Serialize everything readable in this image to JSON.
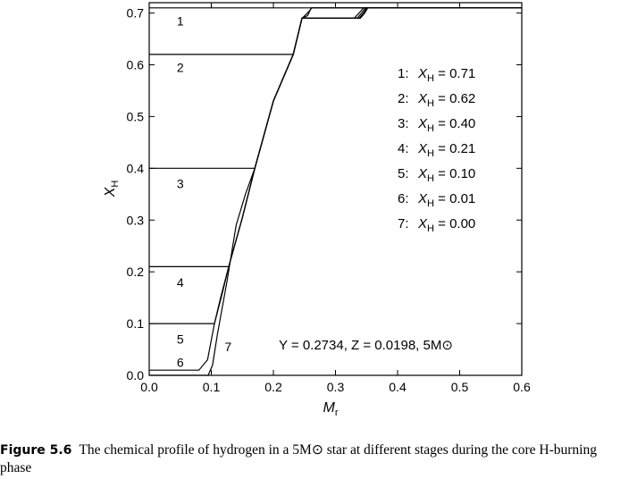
{
  "chart_data": {
    "type": "line",
    "xlabel": "M_r",
    "ylabel": "X_H",
    "xlim": [
      0.0,
      0.6
    ],
    "ylim": [
      0.0,
      0.72
    ],
    "xticks": [
      "0.0",
      "0.1",
      "0.2",
      "0.3",
      "0.4",
      "0.5",
      "0.6"
    ],
    "yticks": [
      "0.0",
      "0.1",
      "0.2",
      "0.3",
      "0.4",
      "0.5",
      "0.6",
      "0.7"
    ],
    "annotation": "Y = 0.2734, Z = 0.0198, 5M⊙",
    "legend": [
      {
        "label": "1:",
        "text": "X_H = 0.71"
      },
      {
        "label": "2:",
        "text": "X_H = 0.62"
      },
      {
        "label": "3:",
        "text": "X_H = 0.40"
      },
      {
        "label": "4:",
        "text": "X_H = 0.21"
      },
      {
        "label": "5:",
        "text": "X_H = 0.10"
      },
      {
        "label": "6:",
        "text": "X_H = 0.01"
      },
      {
        "label": "7:",
        "text": "X_H = 0.00"
      }
    ],
    "series": [
      {
        "name": "1",
        "x": [
          0.0,
          0.6
        ],
        "y": [
          0.71,
          0.71
        ]
      },
      {
        "name": "2",
        "x": [
          0.0,
          0.232,
          0.246,
          0.255,
          0.261,
          0.32,
          0.328,
          0.6
        ],
        "y": [
          0.62,
          0.62,
          0.69,
          0.695,
          0.71,
          0.71,
          0.71,
          0.71
        ]
      },
      {
        "name": "3",
        "x": [
          0.0,
          0.17,
          0.2,
          0.232,
          0.246,
          0.255,
          0.262,
          0.325,
          0.335,
          0.6
        ],
        "y": [
          0.4,
          0.4,
          0.53,
          0.62,
          0.69,
          0.7,
          0.71,
          0.71,
          0.71,
          0.71
        ]
      },
      {
        "name": "4",
        "x": [
          0.0,
          0.128,
          0.15,
          0.17,
          0.2,
          0.232,
          0.246,
          0.33,
          0.338,
          0.345,
          0.6
        ],
        "y": [
          0.21,
          0.21,
          0.305,
          0.4,
          0.53,
          0.62,
          0.69,
          0.69,
          0.7,
          0.71,
          0.71
        ]
      },
      {
        "name": "5",
        "x": [
          0.0,
          0.105,
          0.115,
          0.128,
          0.15,
          0.17,
          0.2,
          0.232,
          0.246,
          0.335,
          0.342,
          0.348,
          0.6
        ],
        "y": [
          0.1,
          0.1,
          0.15,
          0.21,
          0.305,
          0.4,
          0.53,
          0.62,
          0.69,
          0.69,
          0.7,
          0.71,
          0.71
        ]
      },
      {
        "name": "6",
        "x": [
          0.0,
          0.08,
          0.094,
          0.105,
          0.118,
          0.128,
          0.15,
          0.17,
          0.2,
          0.232,
          0.246,
          0.338,
          0.345,
          0.35,
          0.6
        ],
        "y": [
          0.01,
          0.01,
          0.03,
          0.1,
          0.16,
          0.21,
          0.305,
          0.4,
          0.53,
          0.62,
          0.69,
          0.69,
          0.7,
          0.71,
          0.71
        ]
      },
      {
        "name": "7",
        "x": [
          0.0,
          0.095,
          0.102,
          0.11,
          0.125,
          0.14,
          0.155,
          0.17,
          0.2,
          0.232,
          0.246,
          0.34,
          0.347,
          0.352,
          0.6
        ],
        "y": [
          0.0,
          0.0,
          0.02,
          0.08,
          0.18,
          0.29,
          0.35,
          0.4,
          0.53,
          0.62,
          0.69,
          0.69,
          0.7,
          0.71,
          0.71
        ]
      }
    ],
    "curve_labels": [
      {
        "text": "1",
        "x": 0.05,
        "y": 0.685
      },
      {
        "text": "2",
        "x": 0.05,
        "y": 0.595
      },
      {
        "text": "3",
        "x": 0.05,
        "y": 0.37
      },
      {
        "text": "4",
        "x": 0.05,
        "y": 0.18
      },
      {
        "text": "5",
        "x": 0.05,
        "y": 0.07
      },
      {
        "text": "6",
        "x": 0.05,
        "y": 0.025
      },
      {
        "text": "7",
        "x": 0.127,
        "y": 0.055
      }
    ]
  },
  "caption": {
    "label": "Figure 5.6",
    "text": "The chemical profile of hydrogen in a 5M⊙ star at different stages during the core H-burning phase"
  }
}
